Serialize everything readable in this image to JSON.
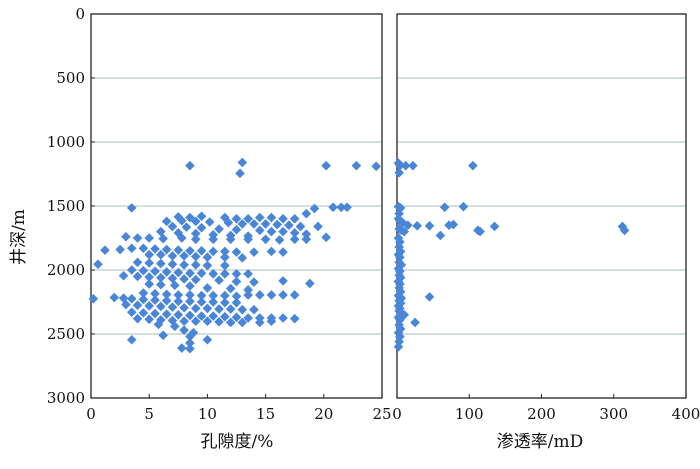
{
  "chart_data": [
    {
      "type": "scatter",
      "xlabel": "孔隙度/%",
      "ylabel": "井深/m",
      "xlim": [
        0,
        25
      ],
      "ylim": [
        3000,
        0
      ],
      "y_inverted": true,
      "xticks": [
        "0",
        "5",
        "10",
        "15",
        "20",
        "25"
      ],
      "yticks": [
        "0",
        "500",
        "1000",
        "1500",
        "2000",
        "2500",
        "3000"
      ],
      "grid": "horizontal",
      "marker": "diamond",
      "color": "#4a86d8",
      "points": [
        [
          8.5,
          1185
        ],
        [
          13.0,
          1160
        ],
        [
          12.8,
          1245
        ],
        [
          20.2,
          1185
        ],
        [
          22.8,
          1185
        ],
        [
          24.5,
          1190
        ],
        [
          3.5,
          1515
        ],
        [
          20.8,
          1510
        ],
        [
          21.5,
          1510
        ],
        [
          22.0,
          1510
        ],
        [
          19.2,
          1520
        ],
        [
          18.5,
          1560
        ],
        [
          7.5,
          1585
        ],
        [
          8.5,
          1590
        ],
        [
          9.5,
          1580
        ],
        [
          11.5,
          1590
        ],
        [
          12.5,
          1600
        ],
        [
          13.5,
          1600
        ],
        [
          14.5,
          1590
        ],
        [
          15.5,
          1590
        ],
        [
          16.5,
          1600
        ],
        [
          17.5,
          1600
        ],
        [
          6.5,
          1620
        ],
        [
          7.8,
          1615
        ],
        [
          9.0,
          1620
        ],
        [
          10.2,
          1625
        ],
        [
          11.8,
          1630
        ],
        [
          13.0,
          1640
        ],
        [
          14.0,
          1640
        ],
        [
          15.0,
          1640
        ],
        [
          16.0,
          1645
        ],
        [
          17.0,
          1650
        ],
        [
          18.0,
          1660
        ],
        [
          19.5,
          1660
        ],
        [
          7.0,
          1660
        ],
        [
          8.2,
          1665
        ],
        [
          9.5,
          1670
        ],
        [
          11.0,
          1680
        ],
        [
          12.5,
          1685
        ],
        [
          14.5,
          1690
        ],
        [
          15.5,
          1700
        ],
        [
          16.5,
          1700
        ],
        [
          17.5,
          1710
        ],
        [
          18.5,
          1720
        ],
        [
          6.0,
          1700
        ],
        [
          7.5,
          1710
        ],
        [
          9.0,
          1715
        ],
        [
          10.5,
          1725
        ],
        [
          12.0,
          1730
        ],
        [
          13.5,
          1735
        ],
        [
          3.0,
          1740
        ],
        [
          4.0,
          1750
        ],
        [
          5.0,
          1750
        ],
        [
          6.2,
          1755
        ],
        [
          7.8,
          1750
        ],
        [
          9.0,
          1760
        ],
        [
          10.5,
          1760
        ],
        [
          12.0,
          1760
        ],
        [
          13.5,
          1760
        ],
        [
          15.0,
          1760
        ],
        [
          16.2,
          1765
        ],
        [
          17.5,
          1760
        ],
        [
          18.5,
          1760
        ],
        [
          20.2,
          1745
        ],
        [
          1.2,
          1845
        ],
        [
          2.5,
          1840
        ],
        [
          3.5,
          1830
        ],
        [
          4.5,
          1830
        ],
        [
          5.5,
          1835
        ],
        [
          6.5,
          1840
        ],
        [
          7.5,
          1845
        ],
        [
          8.5,
          1850
        ],
        [
          9.5,
          1850
        ],
        [
          10.5,
          1855
        ],
        [
          11.5,
          1855
        ],
        [
          12.5,
          1860
        ],
        [
          14.0,
          1860
        ],
        [
          15.5,
          1855
        ],
        [
          16.5,
          1860
        ],
        [
          5.0,
          1880
        ],
        [
          6.0,
          1880
        ],
        [
          7.0,
          1890
        ],
        [
          8.0,
          1890
        ],
        [
          9.0,
          1895
        ],
        [
          10.0,
          1900
        ],
        [
          11.5,
          1900
        ],
        [
          13.0,
          1905
        ],
        [
          0.6,
          1955
        ],
        [
          4.0,
          1940
        ],
        [
          5.0,
          1945
        ],
        [
          6.0,
          1950
        ],
        [
          7.0,
          1955
        ],
        [
          8.0,
          1960
        ],
        [
          9.0,
          1960
        ],
        [
          10.0,
          1965
        ],
        [
          11.5,
          1965
        ],
        [
          3.5,
          2000
        ],
        [
          4.5,
          2005
        ],
        [
          5.5,
          2010
        ],
        [
          6.5,
          2015
        ],
        [
          7.5,
          2020
        ],
        [
          8.5,
          2025
        ],
        [
          9.5,
          2025
        ],
        [
          10.5,
          2030
        ],
        [
          11.5,
          2030
        ],
        [
          12.5,
          2030
        ],
        [
          13.5,
          2030
        ],
        [
          2.8,
          2045
        ],
        [
          4.0,
          2050
        ],
        [
          5.0,
          2055
        ],
        [
          6.0,
          2060
        ],
        [
          7.0,
          2065
        ],
        [
          8.0,
          2070
        ],
        [
          9.0,
          2075
        ],
        [
          11.0,
          2080
        ],
        [
          12.5,
          2090
        ],
        [
          14.0,
          2095
        ],
        [
          16.5,
          2085
        ],
        [
          18.8,
          2105
        ],
        [
          5.0,
          2110
        ],
        [
          6.0,
          2115
        ],
        [
          7.2,
          2120
        ],
        [
          8.5,
          2125
        ],
        [
          10.0,
          2140
        ],
        [
          12.0,
          2145
        ],
        [
          13.5,
          2155
        ],
        [
          4.5,
          2180
        ],
        [
          5.5,
          2185
        ],
        [
          6.5,
          2190
        ],
        [
          7.5,
          2195
        ],
        [
          8.5,
          2195
        ],
        [
          9.5,
          2200
        ],
        [
          10.5,
          2200
        ],
        [
          11.5,
          2200
        ],
        [
          12.5,
          2205
        ],
        [
          13.5,
          2195
        ],
        [
          14.5,
          2195
        ],
        [
          15.5,
          2195
        ],
        [
          16.5,
          2195
        ],
        [
          17.5,
          2195
        ],
        [
          0.2,
          2225
        ],
        [
          2.0,
          2215
        ],
        [
          2.8,
          2220
        ],
        [
          3.5,
          2225
        ],
        [
          4.5,
          2230
        ],
        [
          5.5,
          2235
        ],
        [
          6.5,
          2240
        ],
        [
          7.5,
          2245
        ],
        [
          8.5,
          2245
        ],
        [
          9.5,
          2250
        ],
        [
          10.5,
          2250
        ],
        [
          11.5,
          2255
        ],
        [
          12.5,
          2255
        ],
        [
          3.0,
          2270
        ],
        [
          4.0,
          2275
        ],
        [
          5.0,
          2280
        ],
        [
          6.0,
          2285
        ],
        [
          7.0,
          2290
        ],
        [
          8.0,
          2295
        ],
        [
          9.0,
          2300
        ],
        [
          10.0,
          2300
        ],
        [
          11.0,
          2305
        ],
        [
          12.0,
          2305
        ],
        [
          13.0,
          2310
        ],
        [
          14.0,
          2310
        ],
        [
          3.5,
          2330
        ],
        [
          4.5,
          2335
        ],
        [
          5.5,
          2340
        ],
        [
          6.5,
          2345
        ],
        [
          7.5,
          2350
        ],
        [
          8.5,
          2355
        ],
        [
          9.5,
          2360
        ],
        [
          10.5,
          2360
        ],
        [
          11.5,
          2365
        ],
        [
          12.5,
          2370
        ],
        [
          13.5,
          2375
        ],
        [
          14.5,
          2375
        ],
        [
          15.5,
          2375
        ],
        [
          16.5,
          2375
        ],
        [
          17.5,
          2380
        ],
        [
          4.0,
          2380
        ],
        [
          5.0,
          2385
        ],
        [
          6.0,
          2390
        ],
        [
          7.0,
          2395
        ],
        [
          8.0,
          2400
        ],
        [
          9.0,
          2400
        ],
        [
          10.0,
          2400
        ],
        [
          11.0,
          2405
        ],
        [
          12.0,
          2410
        ],
        [
          13.0,
          2410
        ],
        [
          14.5,
          2410
        ],
        [
          15.5,
          2400
        ],
        [
          5.8,
          2425
        ],
        [
          7.2,
          2440
        ],
        [
          8.0,
          2470
        ],
        [
          8.8,
          2490
        ],
        [
          6.2,
          2510
        ],
        [
          8.5,
          2520
        ],
        [
          3.5,
          2545
        ],
        [
          10.0,
          2545
        ],
        [
          8.5,
          2570
        ],
        [
          7.8,
          2610
        ],
        [
          8.5,
          2615
        ]
      ]
    },
    {
      "type": "scatter",
      "xlabel": "渗透率/mD",
      "ylabel": "",
      "xlim": [
        0,
        400
      ],
      "ylim": [
        3000,
        0
      ],
      "y_inverted": true,
      "xticks": [
        "0",
        "100",
        "200",
        "300",
        "400"
      ],
      "yticks": [],
      "grid": "horizontal",
      "marker": "diamond",
      "color": "#4a86d8",
      "points": [
        [
          2,
          1165
        ],
        [
          4,
          1185
        ],
        [
          12,
          1185
        ],
        [
          22,
          1185
        ],
        [
          105,
          1185
        ],
        [
          3,
          1240
        ],
        [
          2,
          1505
        ],
        [
          5,
          1515
        ],
        [
          66,
          1510
        ],
        [
          92,
          1505
        ],
        [
          3,
          1560
        ],
        [
          2,
          1600
        ],
        [
          4,
          1620
        ],
        [
          8,
          1630
        ],
        [
          15,
          1650
        ],
        [
          28,
          1655
        ],
        [
          45,
          1655
        ],
        [
          72,
          1650
        ],
        [
          78,
          1645
        ],
        [
          135,
          1660
        ],
        [
          312,
          1660
        ],
        [
          3,
          1680
        ],
        [
          6,
          1690
        ],
        [
          10,
          1700
        ],
        [
          112,
          1690
        ],
        [
          115,
          1700
        ],
        [
          315,
          1690
        ],
        [
          60,
          1730
        ],
        [
          2,
          1750
        ],
        [
          4,
          1780
        ],
        [
          3,
          1820
        ],
        [
          5,
          1855
        ],
        [
          2,
          1880
        ],
        [
          4,
          1900
        ],
        [
          3,
          1940
        ],
        [
          6,
          1960
        ],
        [
          2,
          1990
        ],
        [
          4,
          2010
        ],
        [
          3,
          2040
        ],
        [
          5,
          2060
        ],
        [
          2,
          2090
        ],
        [
          4,
          2110
        ],
        [
          3,
          2140
        ],
        [
          5,
          2170
        ],
        [
          2,
          2200
        ],
        [
          4,
          2210
        ],
        [
          6,
          2220
        ],
        [
          45,
          2210
        ],
        [
          3,
          2240
        ],
        [
          5,
          2260
        ],
        [
          2,
          2280
        ],
        [
          4,
          2300
        ],
        [
          3,
          2320
        ],
        [
          6,
          2340
        ],
        [
          10,
          2350
        ],
        [
          2,
          2370
        ],
        [
          4,
          2390
        ],
        [
          25,
          2410
        ],
        [
          3,
          2430
        ],
        [
          5,
          2460
        ],
        [
          2,
          2490
        ],
        [
          4,
          2520
        ],
        [
          3,
          2560
        ],
        [
          2,
          2600
        ]
      ]
    }
  ]
}
